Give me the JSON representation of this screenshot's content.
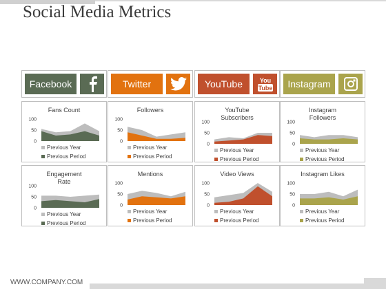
{
  "title": "Social Media Metrics",
  "footer": "WWW.COMPANY.COM",
  "colors": {
    "facebook": "#5a6b54",
    "twitter": "#e2720f",
    "youtube": "#c0502d",
    "instagram": "#aaa44c",
    "previous_year": "#bdbdbd"
  },
  "headers": [
    {
      "label": "Facebook",
      "icon_text": "f",
      "icon": "facebook-logo-icon"
    },
    {
      "label": "Twitter",
      "icon_text": "",
      "icon": "twitter-bird-icon"
    },
    {
      "label": "YouTube",
      "icon_text": "You\nTube",
      "icon": "youtube-logo-icon"
    },
    {
      "label": "Instagram",
      "icon_text": "",
      "icon": "instagram-camera-icon"
    }
  ],
  "chart_data": [
    {
      "type": "area",
      "title": "Fans Count",
      "ylim": [
        0,
        100
      ],
      "yticks": [
        0,
        50,
        100
      ],
      "series": [
        {
          "name": "Previous Year",
          "values": [
            55,
            40,
            45,
            80,
            45
          ]
        },
        {
          "name": "Previous Period",
          "values": [
            45,
            25,
            30,
            45,
            25
          ]
        }
      ]
    },
    {
      "type": "area",
      "title": "Followers",
      "ylim": [
        0,
        100
      ],
      "yticks": [
        0,
        50,
        100
      ],
      "series": [
        {
          "name": "Previous Year",
          "values": [
            65,
            50,
            20,
            30,
            40
          ]
        },
        {
          "name": "Previous Period",
          "values": [
            40,
            25,
            10,
            10,
            15
          ]
        }
      ]
    },
    {
      "type": "area",
      "title": "YouTube Subscribers",
      "ylim": [
        0,
        100
      ],
      "yticks": [
        0,
        50,
        100
      ],
      "series": [
        {
          "name": "Previous Year",
          "values": [
            20,
            30,
            25,
            50,
            50
          ]
        },
        {
          "name": "Previous Period",
          "values": [
            10,
            15,
            20,
            40,
            35
          ]
        }
      ]
    },
    {
      "type": "area",
      "title": "Instagram Followers",
      "ylim": [
        0,
        100
      ],
      "yticks": [
        0,
        50,
        100
      ],
      "series": [
        {
          "name": "Previous Year",
          "values": [
            40,
            30,
            40,
            40,
            30
          ]
        },
        {
          "name": "Previous Period",
          "values": [
            25,
            20,
            20,
            25,
            20
          ]
        }
      ]
    },
    {
      "type": "area",
      "title": "Engagement Rate",
      "ylim": [
        0,
        100
      ],
      "yticks": [
        0,
        50,
        100
      ],
      "series": [
        {
          "name": "Previous Year",
          "values": [
            55,
            55,
            50,
            55,
            60
          ]
        },
        {
          "name": "Previous Period",
          "values": [
            30,
            35,
            30,
            25,
            40
          ]
        }
      ]
    },
    {
      "type": "area",
      "title": "Mentions",
      "ylim": [
        0,
        100
      ],
      "yticks": [
        0,
        50,
        100
      ],
      "series": [
        {
          "name": "Previous Year",
          "values": [
            50,
            65,
            55,
            40,
            60
          ]
        },
        {
          "name": "Previous Period",
          "values": [
            25,
            40,
            35,
            30,
            40
          ]
        }
      ]
    },
    {
      "type": "area",
      "title": "Video Views",
      "ylim": [
        0,
        100
      ],
      "yticks": [
        0,
        50,
        100
      ],
      "series": [
        {
          "name": "Previous Year",
          "values": [
            35,
            45,
            55,
            100,
            60
          ]
        },
        {
          "name": "Previous Period",
          "values": [
            10,
            15,
            30,
            85,
            40
          ]
        }
      ]
    },
    {
      "type": "area",
      "title": "Instagram  Likes",
      "ylim": [
        0,
        100
      ],
      "yticks": [
        0,
        50,
        100
      ],
      "series": [
        {
          "name": "Previous Year",
          "values": [
            50,
            50,
            60,
            40,
            70
          ]
        },
        {
          "name": "Previous Period",
          "values": [
            30,
            30,
            35,
            25,
            40
          ]
        }
      ]
    }
  ]
}
